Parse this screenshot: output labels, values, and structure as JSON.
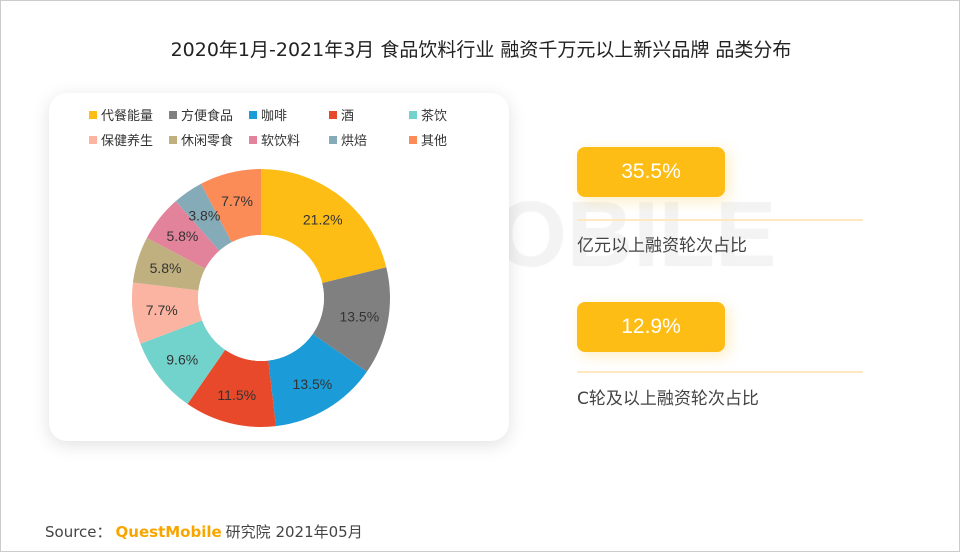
{
  "chart_data": {
    "type": "pie",
    "donut": true,
    "title": "2020年1月-2021年3月 食品饮料行业 融资千万元以上新兴品牌 品类分布",
    "categories": [
      "代餐能量",
      "方便食品",
      "咖啡",
      "酒",
      "茶饮",
      "保健养生",
      "休闲零食",
      "软饮料",
      "烘焙",
      "其他"
    ],
    "values": [
      21.2,
      13.5,
      13.5,
      11.5,
      9.6,
      7.7,
      5.8,
      5.8,
      3.8,
      7.7
    ],
    "labels": [
      "21.2%",
      "13.5%",
      "13.5%",
      "11.5%",
      "9.6%",
      "7.7%",
      "5.8%",
      "5.8%",
      "3.8%",
      "7.7%"
    ],
    "colors": [
      "#fdbd14",
      "#808080",
      "#1b9bd7",
      "#e8492a",
      "#72d3cd",
      "#fbb4a1",
      "#c0b07f",
      "#e2829b",
      "#85abb9",
      "#fb8b57"
    ],
    "legend_position": "top"
  },
  "watermark": "QUESTMOBILE",
  "stats": [
    {
      "value": "35.5%",
      "label": "亿元以上融资轮次占比"
    },
    {
      "value": "12.9%",
      "label": "C轮及以上融资轮次占比"
    }
  ],
  "source": {
    "prefix": "Source：",
    "brand": "QuestMobile",
    "suffix": "研究院 2021年05月"
  }
}
